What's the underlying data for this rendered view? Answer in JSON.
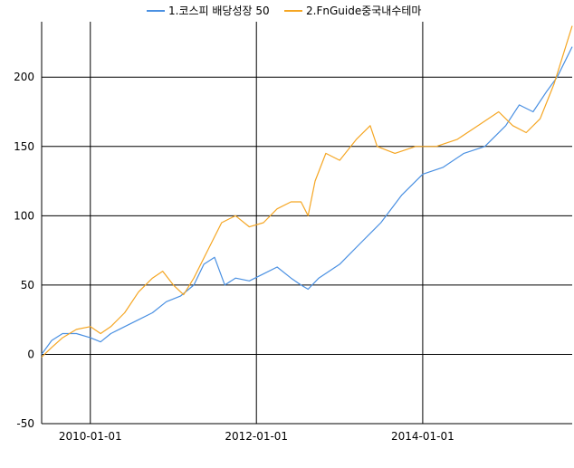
{
  "chart_data": {
    "type": "line",
    "legend": {
      "position": "top"
    },
    "grid": true,
    "x": {
      "range": [
        "2009-06-01",
        "2015-10-20"
      ],
      "tick_values": [
        "2010-01-01",
        "2012-01-01",
        "2014-01-01"
      ],
      "tick_labels": [
        "2010-01-01",
        "2012-01-01",
        "2014-01-01"
      ]
    },
    "y": {
      "range": [
        -50,
        240
      ],
      "ticks": [
        -50,
        0,
        50,
        100,
        150,
        200
      ],
      "tick_labels": [
        "-50",
        "0",
        "50",
        "100",
        "150",
        "200"
      ]
    },
    "series": [
      {
        "name": "1.코스피 배당성장 50",
        "color": "#4a90e2",
        "points": [
          [
            "2009-06-01",
            0
          ],
          [
            "2009-07-15",
            10
          ],
          [
            "2009-09-01",
            15
          ],
          [
            "2009-11-01",
            15
          ],
          [
            "2010-01-01",
            12
          ],
          [
            "2010-02-15",
            9
          ],
          [
            "2010-04-01",
            15
          ],
          [
            "2010-06-01",
            20
          ],
          [
            "2010-08-01",
            25
          ],
          [
            "2010-10-01",
            30
          ],
          [
            "2010-12-01",
            38
          ],
          [
            "2011-02-01",
            42
          ],
          [
            "2011-04-01",
            50
          ],
          [
            "2011-05-15",
            65
          ],
          [
            "2011-07-01",
            70
          ],
          [
            "2011-08-15",
            50
          ],
          [
            "2011-10-01",
            55
          ],
          [
            "2011-12-01",
            53
          ],
          [
            "2012-02-01",
            58
          ],
          [
            "2012-04-01",
            63
          ],
          [
            "2012-06-01",
            55
          ],
          [
            "2012-07-15",
            50
          ],
          [
            "2012-08-15",
            47
          ],
          [
            "2012-10-01",
            55
          ],
          [
            "2013-01-01",
            65
          ],
          [
            "2013-04-01",
            80
          ],
          [
            "2013-07-01",
            95
          ],
          [
            "2013-10-01",
            115
          ],
          [
            "2014-01-01",
            130
          ],
          [
            "2014-04-01",
            135
          ],
          [
            "2014-07-01",
            145
          ],
          [
            "2014-10-01",
            150
          ],
          [
            "2015-01-01",
            165
          ],
          [
            "2015-03-01",
            180
          ],
          [
            "2015-05-01",
            175
          ],
          [
            "2015-07-01",
            190
          ],
          [
            "2015-08-15",
            200
          ],
          [
            "2015-10-20",
            222
          ]
        ]
      },
      {
        "name": "2.FnGuide중국내수테마",
        "color": "#f5a623",
        "points": [
          [
            "2009-06-01",
            -2
          ],
          [
            "2009-07-15",
            5
          ],
          [
            "2009-09-01",
            12
          ],
          [
            "2009-11-01",
            18
          ],
          [
            "2010-01-01",
            20
          ],
          [
            "2010-02-15",
            15
          ],
          [
            "2010-04-01",
            20
          ],
          [
            "2010-06-01",
            30
          ],
          [
            "2010-08-01",
            45
          ],
          [
            "2010-10-01",
            55
          ],
          [
            "2010-11-15",
            60
          ],
          [
            "2011-01-01",
            50
          ],
          [
            "2011-02-15",
            43
          ],
          [
            "2011-04-01",
            55
          ],
          [
            "2011-06-01",
            75
          ],
          [
            "2011-08-01",
            95
          ],
          [
            "2011-10-01",
            100
          ],
          [
            "2011-12-01",
            92
          ],
          [
            "2012-02-01",
            95
          ],
          [
            "2012-04-01",
            105
          ],
          [
            "2012-06-01",
            110
          ],
          [
            "2012-07-15",
            110
          ],
          [
            "2012-08-15",
            100
          ],
          [
            "2012-09-15",
            125
          ],
          [
            "2012-11-01",
            145
          ],
          [
            "2013-01-01",
            140
          ],
          [
            "2013-03-15",
            155
          ],
          [
            "2013-05-15",
            165
          ],
          [
            "2013-06-15",
            150
          ],
          [
            "2013-09-01",
            145
          ],
          [
            "2013-12-01",
            150
          ],
          [
            "2014-03-01",
            150
          ],
          [
            "2014-06-01",
            155
          ],
          [
            "2014-09-01",
            165
          ],
          [
            "2014-12-01",
            175
          ],
          [
            "2015-02-01",
            165
          ],
          [
            "2015-04-01",
            160
          ],
          [
            "2015-06-01",
            170
          ],
          [
            "2015-08-01",
            195
          ],
          [
            "2015-10-20",
            237
          ]
        ]
      }
    ]
  }
}
